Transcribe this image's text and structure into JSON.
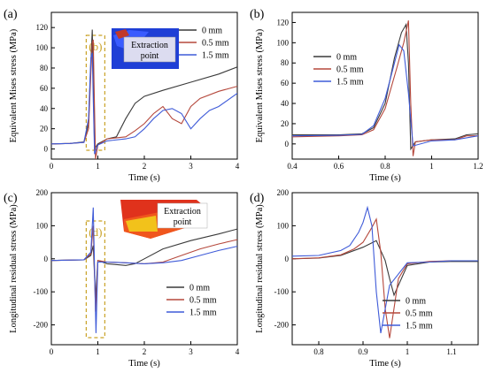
{
  "colors": {
    "0 mm": "#3a3a3a",
    "0.5 mm": "#b5483c",
    "1.5 mm": "#3f5bd8",
    "highlight": "#c9a227"
  },
  "chart_data": [
    {
      "panel": "(a)",
      "type": "line",
      "xlabel": "Time (s)",
      "ylabel": "Equivalent Mises stress (MPa)",
      "xlim": [
        0,
        4
      ],
      "ylim": [
        -10,
        135
      ],
      "xticks": [
        0,
        1,
        2,
        3,
        4
      ],
      "yticks": [
        0,
        20,
        40,
        60,
        80,
        100,
        120
      ],
      "legend": "top-right",
      "inset_label": "Extraction point",
      "highlight_label": "(b)",
      "highlight_x": [
        0.75,
        1.15
      ],
      "series": [
        {
          "name": "0 mm",
          "x": [
            0,
            0.4,
            0.7,
            0.8,
            0.85,
            0.88,
            0.9,
            0.93,
            1.0,
            1.2,
            1.4,
            1.6,
            1.8,
            2.0,
            2.4,
            3.0,
            3.6,
            4.0
          ],
          "y": [
            5,
            5.5,
            7,
            25,
            85,
            118,
            70,
            0,
            5,
            10,
            12,
            30,
            45,
            52,
            58,
            66,
            74,
            81
          ]
        },
        {
          "name": "0.5 mm",
          "x": [
            0,
            0.4,
            0.7,
            0.8,
            0.85,
            0.88,
            0.9,
            0.92,
            0.95,
            1.0,
            1.2,
            1.6,
            1.8,
            2.0,
            2.2,
            2.4,
            2.6,
            2.8,
            3.0,
            3.2,
            3.6,
            4.0
          ],
          "y": [
            5,
            5.5,
            6.5,
            20,
            75,
            105,
            108,
            60,
            -10,
            4,
            10,
            12,
            18,
            25,
            35,
            42,
            30,
            25,
            42,
            50,
            57,
            62
          ]
        },
        {
          "name": "1.5 mm",
          "x": [
            0,
            0.4,
            0.7,
            0.8,
            0.85,
            0.88,
            0.9,
            0.93,
            1.0,
            1.2,
            1.6,
            1.8,
            2.0,
            2.2,
            2.4,
            2.6,
            2.8,
            3.0,
            3.2,
            3.4,
            3.6,
            4.0
          ],
          "y": [
            5,
            5.5,
            6.5,
            30,
            90,
            95,
            50,
            -5,
            4,
            8,
            10,
            12,
            20,
            30,
            38,
            40,
            35,
            20,
            30,
            38,
            42,
            55
          ]
        }
      ]
    },
    {
      "panel": "(b)",
      "type": "line",
      "xlabel": "Time (s)",
      "ylabel": "Equivalent Mises stress (MPa)",
      "xlim": [
        0.4,
        1.2
      ],
      "ylim": [
        -15,
        130
      ],
      "xticks": [
        0.4,
        0.6,
        0.8,
        1.0,
        1.2
      ],
      "yticks": [
        0,
        20,
        40,
        60,
        80,
        100,
        120
      ],
      "legend": "center-left",
      "series": [
        {
          "name": "0 mm",
          "x": [
            0.4,
            0.6,
            0.7,
            0.75,
            0.8,
            0.84,
            0.87,
            0.89,
            0.9,
            0.91,
            0.93,
            1.0,
            1.1,
            1.15,
            1.2
          ],
          "y": [
            9,
            9,
            10,
            16,
            40,
            85,
            110,
            118,
            80,
            -5,
            2,
            4,
            5,
            9,
            10
          ]
        },
        {
          "name": "0.5 mm",
          "x": [
            0.4,
            0.6,
            0.7,
            0.75,
            0.8,
            0.85,
            0.88,
            0.9,
            0.91,
            0.92,
            0.93,
            1.0,
            1.1,
            1.15,
            1.2
          ],
          "y": [
            7,
            8,
            9,
            14,
            35,
            75,
            100,
            122,
            40,
            -12,
            2,
            4,
            4,
            8,
            8
          ]
        },
        {
          "name": "1.5 mm",
          "x": [
            0.4,
            0.6,
            0.7,
            0.75,
            0.8,
            0.84,
            0.86,
            0.88,
            0.9,
            0.92,
            1.0,
            1.1,
            1.2
          ],
          "y": [
            8,
            8.5,
            9.5,
            18,
            45,
            80,
            98,
            92,
            50,
            -2,
            3,
            4,
            8
          ]
        }
      ]
    },
    {
      "panel": "(c)",
      "type": "line",
      "xlabel": "Time (s)",
      "ylabel": "Longitudinal residual stress (MPa)",
      "xlim": [
        0,
        4
      ],
      "ylim": [
        -260,
        200
      ],
      "xticks": [
        0,
        1,
        2,
        3,
        4
      ],
      "yticks": [
        -200,
        -100,
        0,
        100,
        200
      ],
      "legend": "bottom-right",
      "inset_label": "Extraction point",
      "highlight_label": "(d)",
      "highlight_x": [
        0.75,
        1.15
      ],
      "series": [
        {
          "name": "0 mm",
          "x": [
            0,
            0.7,
            0.85,
            0.9,
            0.95,
            1.0,
            1.2,
            1.6,
            1.8,
            2.0,
            2.4,
            3.0,
            3.6,
            4.0
          ],
          "y": [
            -5,
            -3,
            10,
            40,
            -120,
            -5,
            -15,
            -20,
            -15,
            0,
            30,
            55,
            75,
            90
          ]
        },
        {
          "name": "0.5 mm",
          "x": [
            0,
            0.7,
            0.85,
            0.9,
            0.95,
            1.0,
            1.2,
            1.6,
            2.0,
            2.4,
            2.8,
            3.2,
            3.6,
            4.0
          ],
          "y": [
            -5,
            -3,
            15,
            100,
            -160,
            -5,
            -10,
            -12,
            -15,
            -10,
            10,
            30,
            45,
            58
          ]
        },
        {
          "name": "1.5 mm",
          "x": [
            0,
            0.7,
            0.85,
            0.9,
            0.93,
            0.96,
            1.0,
            1.2,
            1.6,
            2.0,
            2.4,
            2.8,
            3.2,
            3.6,
            4.0
          ],
          "y": [
            -5,
            -3,
            20,
            155,
            -30,
            -225,
            -10,
            -10,
            -12,
            -15,
            -12,
            -5,
            10,
            25,
            38
          ]
        }
      ]
    },
    {
      "panel": "(d)",
      "type": "line",
      "xlabel": "Time (s)",
      "ylabel": "Longitudinal residual stress (MPa)",
      "xlim": [
        0.74,
        1.16
      ],
      "ylim": [
        -260,
        200
      ],
      "xticks": [
        0.8,
        0.9,
        1.0,
        1.1
      ],
      "yticks": [
        -300,
        -200,
        -100,
        0,
        100,
        200
      ],
      "legend": "bottom-right",
      "series": [
        {
          "name": "0 mm",
          "x": [
            0.74,
            0.8,
            0.85,
            0.9,
            0.93,
            0.95,
            0.96,
            0.97,
            0.98,
            1.0,
            1.05,
            1.1,
            1.16
          ],
          "y": [
            0,
            2,
            10,
            35,
            55,
            -5,
            -60,
            -110,
            -80,
            -20,
            -10,
            -8,
            -8
          ]
        },
        {
          "name": "0.5 mm",
          "x": [
            0.74,
            0.8,
            0.85,
            0.88,
            0.9,
            0.92,
            0.93,
            0.94,
            0.95,
            0.96,
            0.98,
            1.0,
            1.05,
            1.1,
            1.16
          ],
          "y": [
            0,
            3,
            12,
            30,
            50,
            95,
            120,
            20,
            -150,
            -240,
            -60,
            -15,
            -8,
            -6,
            -6
          ]
        },
        {
          "name": "1.5 mm",
          "x": [
            0.74,
            0.8,
            0.85,
            0.87,
            0.89,
            0.9,
            0.91,
            0.92,
            0.93,
            0.94,
            0.96,
            1.0,
            1.05,
            1.1,
            1.16
          ],
          "y": [
            8,
            10,
            25,
            40,
            80,
            110,
            155,
            100,
            -100,
            -225,
            -80,
            -12,
            -10,
            -6,
            -6
          ]
        }
      ]
    }
  ]
}
